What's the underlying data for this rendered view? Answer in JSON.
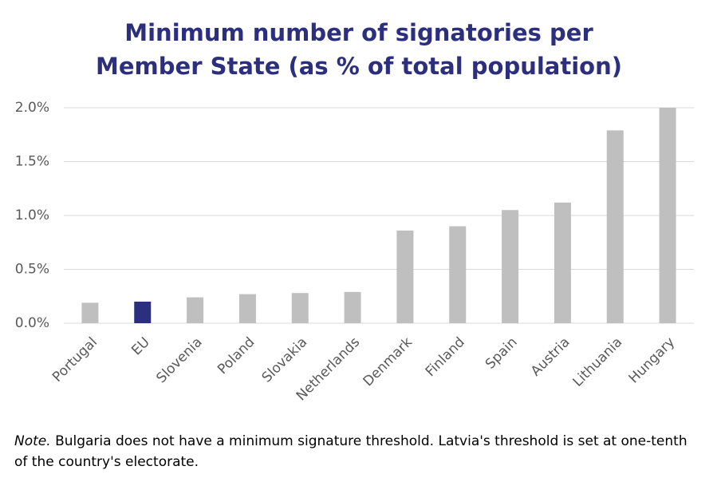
{
  "chart_data": {
    "type": "bar",
    "title": "Minimum number of signatories per Member State (as % of total population)",
    "categories": [
      "Portugal",
      "EU",
      "Slovenia",
      "Poland",
      "Slovakia",
      "Netherlands",
      "Denmark",
      "Finland",
      "Spain",
      "Austria",
      "Lithuania",
      "Hungary"
    ],
    "values": [
      0.19,
      0.2,
      0.24,
      0.27,
      0.28,
      0.29,
      0.86,
      0.9,
      1.05,
      1.12,
      1.79,
      2.0
    ],
    "colors": [
      "#bfbfbf",
      "#2b2f7e",
      "#bfbfbf",
      "#bfbfbf",
      "#bfbfbf",
      "#bfbfbf",
      "#bfbfbf",
      "#bfbfbf",
      "#bfbfbf",
      "#bfbfbf",
      "#bfbfbf",
      "#bfbfbf"
    ],
    "ylim": [
      0,
      2.0
    ],
    "yticks": [
      {
        "value": 0,
        "label": "0.0%"
      },
      {
        "value": 0.5,
        "label": "0.5%"
      },
      {
        "value": 1.0,
        "label": "1.0%"
      },
      {
        "value": 1.5,
        "label": "1.5%"
      },
      {
        "value": 2.0,
        "label": "2.0%"
      }
    ],
    "grid": true,
    "note_label": "Note.",
    "note": "Bulgaria does not have a minimum signature threshold. Latvia's threshold is set at one-tenth of the country's electorate."
  }
}
